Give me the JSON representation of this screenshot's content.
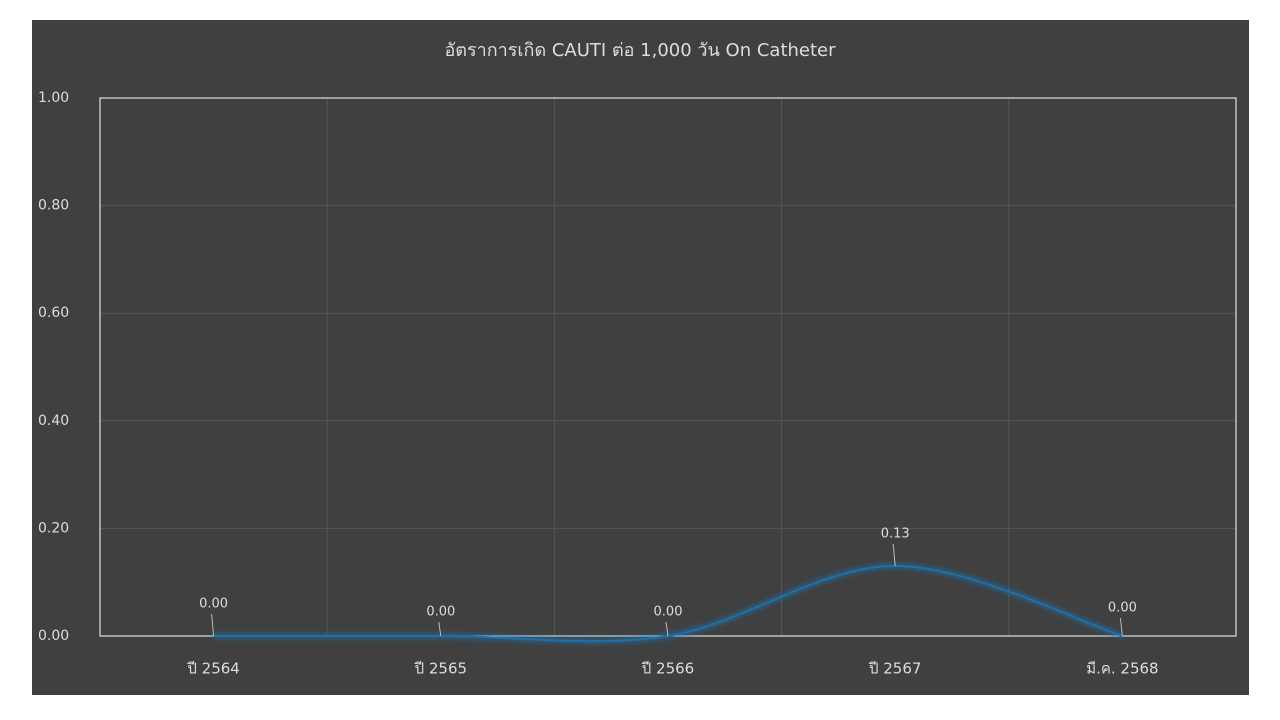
{
  "chart_data": {
    "type": "line",
    "title": "อัตราการเกิด CAUTI ต่อ 1,000 วัน On Catheter",
    "categories": [
      "ปี 2564",
      "ปี 2565",
      "ปี 2566",
      "ปี 2567",
      "มี.ค. 2568"
    ],
    "values": [
      0,
      0,
      0,
      0.13,
      0
    ],
    "value_labels": [
      "0.00",
      "0.00",
      "0.00",
      "0.13",
      "0.00"
    ],
    "color": "#1f6fa8",
    "ylim": [
      0,
      1
    ],
    "yticks": [
      {
        "value": 0,
        "label": "0.00"
      },
      {
        "value": 0.2,
        "label": "0.20"
      },
      {
        "value": 0.4,
        "label": "0.40"
      },
      {
        "value": 0.6,
        "label": "0.60"
      },
      {
        "value": 0.8,
        "label": "0.80"
      },
      {
        "value": 1,
        "label": "1.00"
      }
    ],
    "grid": true
  }
}
